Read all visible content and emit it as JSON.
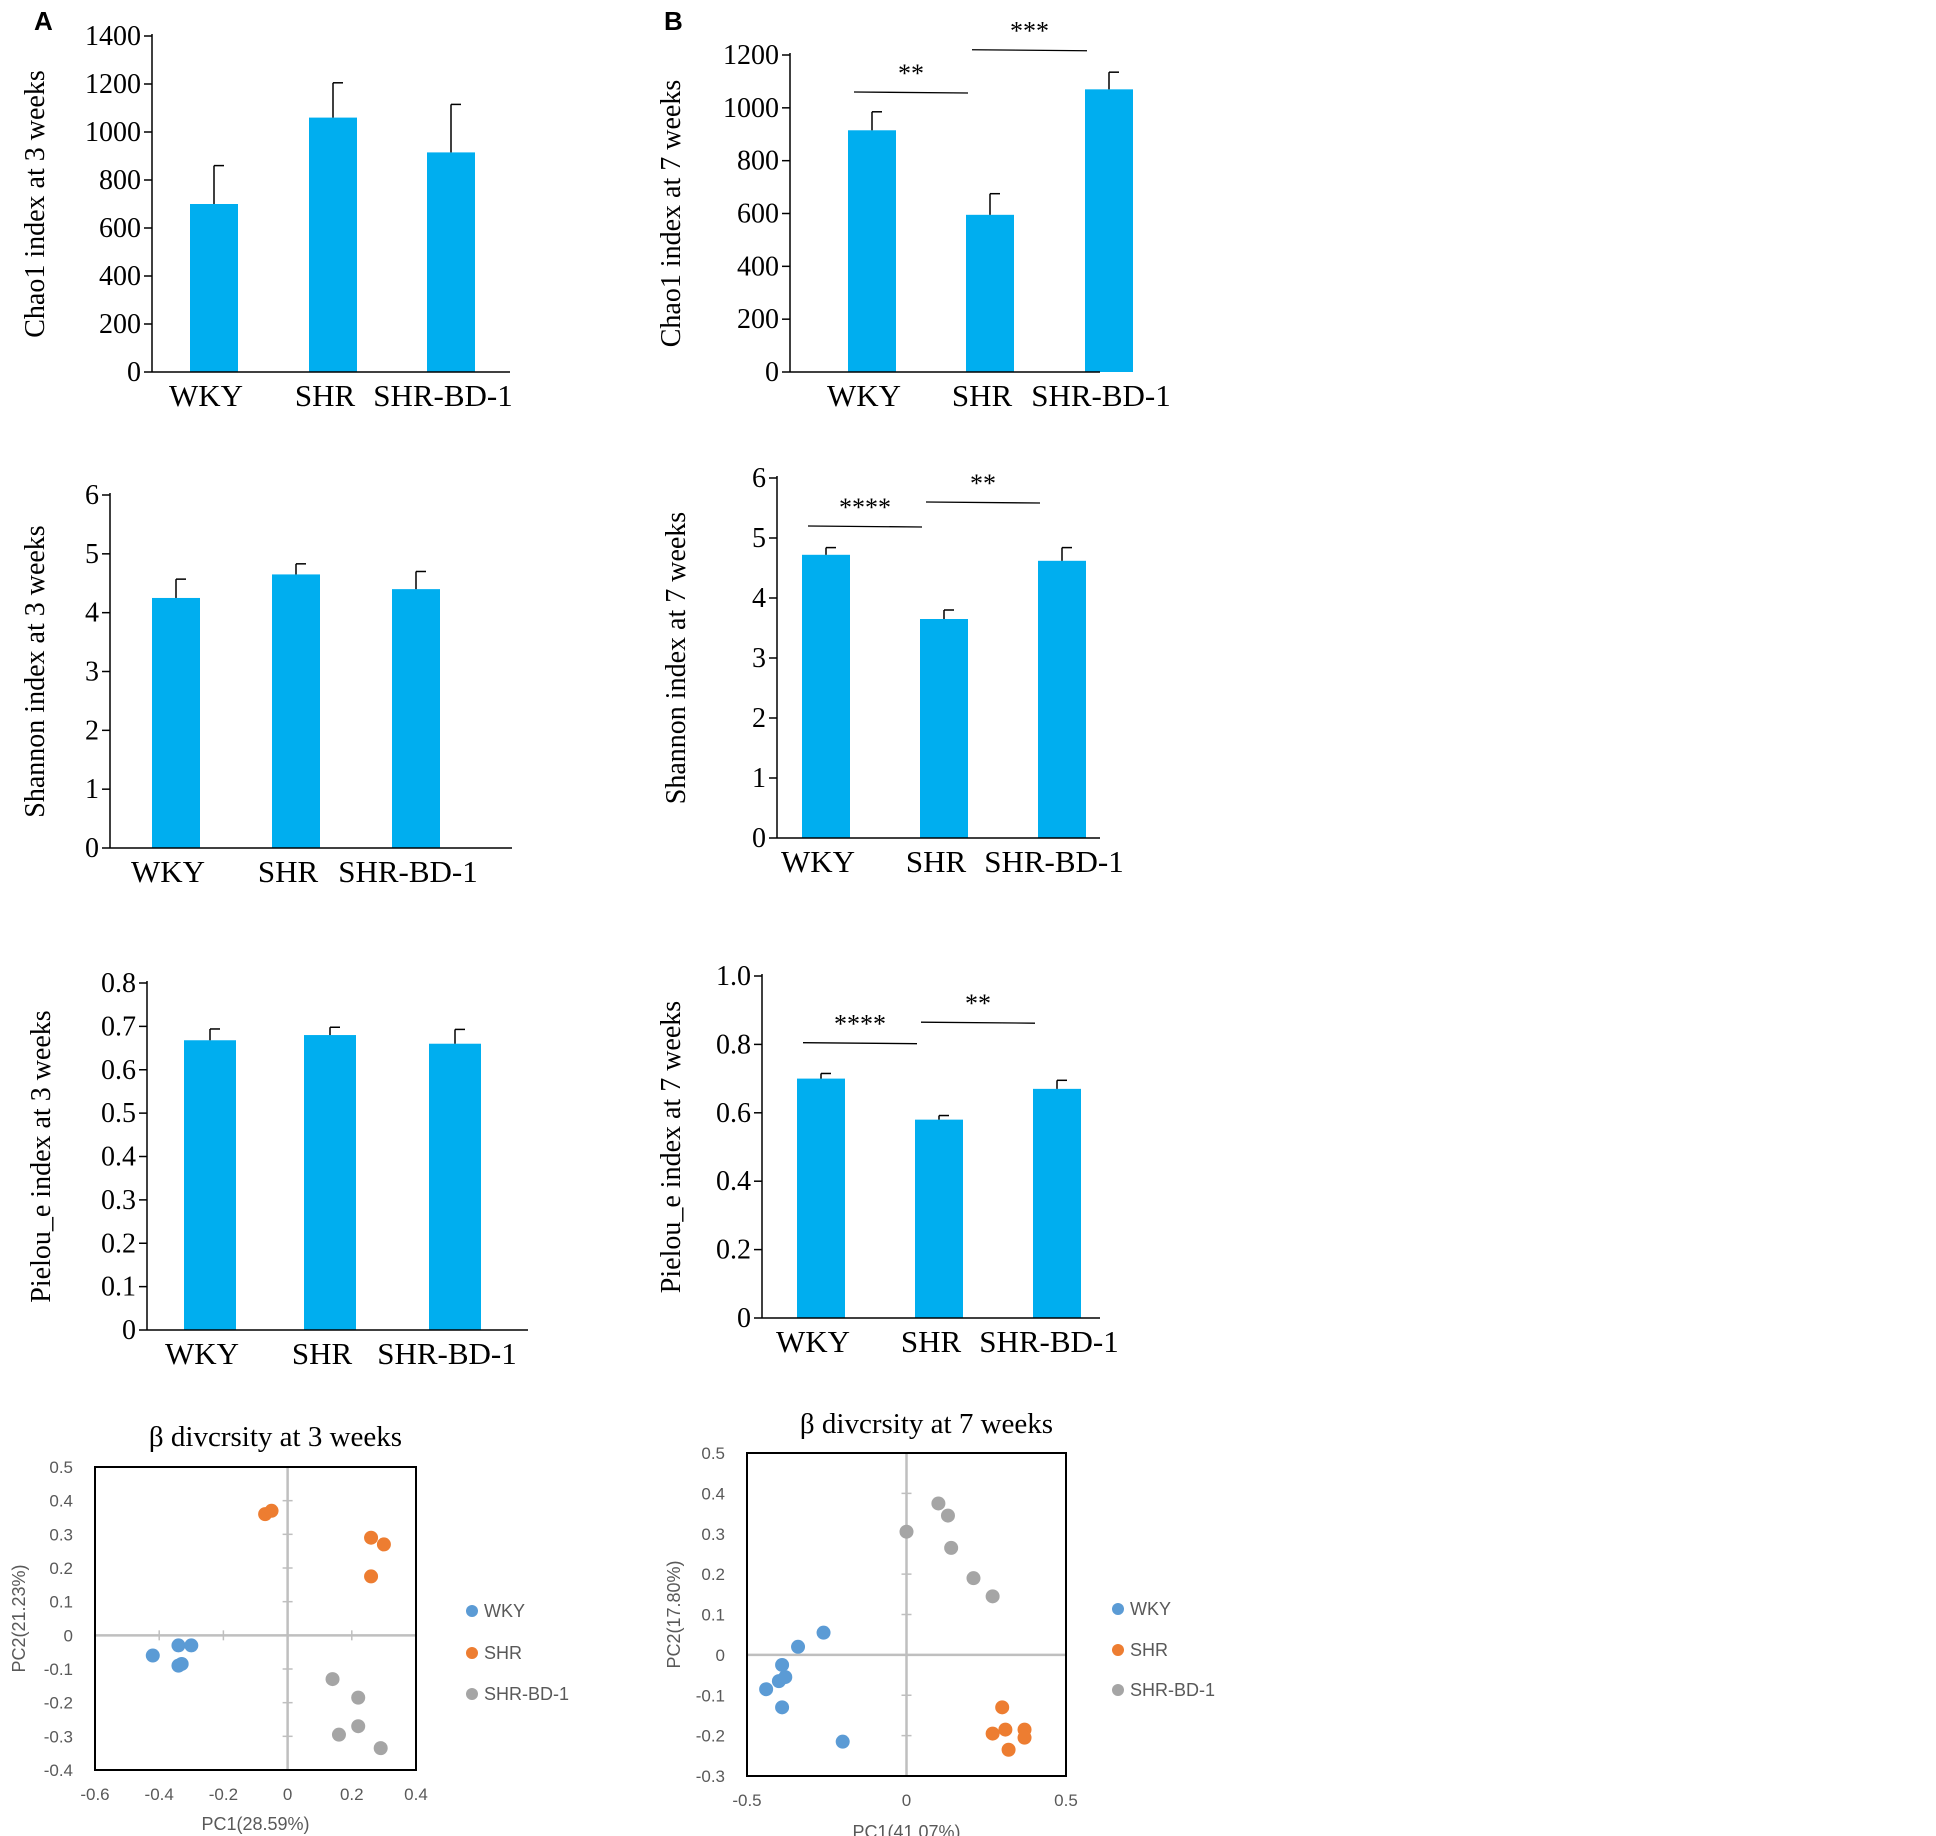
{
  "panel_labels": [
    "A",
    "B"
  ],
  "colors": {
    "bar": "#00AEEF",
    "axis": "#000000",
    "WKY": "#5B9BD5",
    "SHR": "#ED7D31",
    "SHR-BD-1": "#A5A5A5",
    "pca_axis": "#BFBFBF"
  },
  "chart_data": [
    {
      "id": "chao1-3w",
      "type": "bar",
      "panel": "A",
      "categories": [
        "WKY",
        "SHR",
        "SHR-BD-1"
      ],
      "values": [
        700,
        1060,
        915
      ],
      "errors": [
        160,
        145,
        200
      ],
      "ylabel": "Chao1 index at 3 weeks",
      "ylim": [
        0,
        1400
      ],
      "ticks": [
        0,
        200,
        400,
        600,
        800,
        1000,
        1200,
        1400
      ],
      "tick_labels": [
        "0",
        "200",
        "400",
        "600",
        "800",
        "1000",
        "1200",
        "1400"
      ],
      "significance": []
    },
    {
      "id": "chao1-7w",
      "type": "bar",
      "panel": "B",
      "categories": [
        "WKY",
        "SHR",
        "SHR-BD-1"
      ],
      "values": [
        915,
        595,
        1070
      ],
      "errors": [
        70,
        80,
        65
      ],
      "ylabel": "Chao1 index at 7 weeks",
      "ylim": [
        0,
        1200
      ],
      "ticks": [
        0,
        200,
        400,
        600,
        800,
        1000,
        1200
      ],
      "tick_labels": [
        "0",
        "200",
        "400",
        "600",
        "800",
        "1000",
        "1200"
      ],
      "significance": [
        {
          "from": 0,
          "to": 1,
          "label": "**",
          "y": 1060
        },
        {
          "from": 1,
          "to": 2,
          "label": "***",
          "y": 1220
        }
      ]
    },
    {
      "id": "shannon-3w",
      "type": "bar",
      "panel": "A",
      "categories": [
        "WKY",
        "SHR",
        "SHR-BD-1"
      ],
      "values": [
        4.25,
        4.65,
        4.4
      ],
      "errors": [
        0.32,
        0.18,
        0.3
      ],
      "ylabel": "Shannon index at 3 weeks",
      "ylim": [
        0,
        6
      ],
      "ticks": [
        0,
        1,
        2,
        3,
        4,
        5,
        6
      ],
      "tick_labels": [
        "0",
        "1",
        "2",
        "3",
        "4",
        "5",
        "6"
      ],
      "significance": []
    },
    {
      "id": "shannon-7w",
      "type": "bar",
      "panel": "B",
      "categories": [
        "WKY",
        "SHR",
        "SHR-BD-1"
      ],
      "values": [
        4.72,
        3.65,
        4.62
      ],
      "errors": [
        0.12,
        0.15,
        0.22
      ],
      "ylabel": "Shannon index at 7 weeks",
      "ylim": [
        0,
        6
      ],
      "ticks": [
        0,
        1,
        2,
        3,
        4,
        5,
        6
      ],
      "tick_labels": [
        "0",
        "1",
        "2",
        "3",
        "4",
        "5",
        "6"
      ],
      "significance": [
        {
          "from": 0,
          "to": 1,
          "label": "****",
          "y": 5.2
        },
        {
          "from": 1,
          "to": 2,
          "label": "**",
          "y": 5.6
        }
      ]
    },
    {
      "id": "pielou-3w",
      "type": "bar",
      "panel": "A",
      "categories": [
        "WKY",
        "SHR",
        "SHR-BD-1"
      ],
      "values": [
        0.668,
        0.68,
        0.66
      ],
      "errors": [
        0.026,
        0.018,
        0.033
      ],
      "ylabel": "Pielou_e index at 3 weeks",
      "ylim": [
        0,
        0.8
      ],
      "ticks": [
        0,
        0.1,
        0.2,
        0.3,
        0.4,
        0.5,
        0.6,
        0.7,
        0.8
      ],
      "tick_labels": [
        "0",
        "0.1",
        "0.2",
        "0.3",
        "0.4",
        "0.5",
        "0.6",
        "0.7",
        "0.8"
      ],
      "significance": []
    },
    {
      "id": "pielou-7w",
      "type": "bar",
      "panel": "B",
      "categories": [
        "WKY",
        "SHR",
        "SHR-BD-1"
      ],
      "values": [
        0.7,
        0.58,
        0.67
      ],
      "errors": [
        0.015,
        0.012,
        0.025
      ],
      "ylabel": "Pielou_e index at 7 weeks",
      "ylim": [
        0,
        1.0
      ],
      "ticks": [
        0,
        0.2,
        0.4,
        0.6,
        0.8,
        1.0
      ],
      "tick_labels": [
        "0",
        "0.2",
        "0.4",
        "0.6",
        "0.8",
        "1.0"
      ],
      "significance": [
        {
          "from": 0,
          "to": 1,
          "label": "****",
          "y": 0.805
        },
        {
          "from": 1,
          "to": 2,
          "label": "**",
          "y": 0.865
        }
      ]
    },
    {
      "id": "beta-3w",
      "type": "scatter",
      "title": "β divcrsity at 3 weeks",
      "xlabel": "PC1(28.59%)",
      "ylabel": "PC2(21.23%)",
      "xlim": [
        -0.6,
        0.4
      ],
      "ylim": [
        -0.4,
        0.5
      ],
      "xticks": [
        -0.6,
        -0.4,
        -0.2,
        0,
        0.2,
        0.4
      ],
      "xtick_labels": [
        "-0.6",
        "-0.4",
        "-0.2",
        "0",
        "0.2",
        "0.4"
      ],
      "yticks": [
        -0.4,
        -0.3,
        -0.2,
        -0.1,
        0,
        0.1,
        0.2,
        0.3,
        0.4,
        0.5
      ],
      "ytick_labels": [
        "-0.4",
        "-0.3",
        "-0.2",
        "-0.1",
        "0",
        "0.1",
        "0.2",
        "0.3",
        "0.4",
        "0.5"
      ],
      "legend": [
        "WKY",
        "SHR",
        "SHR-BD-1"
      ],
      "series": [
        {
          "name": "WKY",
          "points": [
            [
              -0.42,
              -0.06
            ],
            [
              -0.34,
              -0.03
            ],
            [
              -0.3,
              -0.03
            ],
            [
              -0.34,
              -0.09
            ],
            [
              -0.33,
              -0.085
            ]
          ]
        },
        {
          "name": "SHR",
          "points": [
            [
              -0.07,
              0.36
            ],
            [
              -0.05,
              0.37
            ],
            [
              0.26,
              0.29
            ],
            [
              0.3,
              0.27
            ],
            [
              0.26,
              0.175
            ]
          ]
        },
        {
          "name": "SHR-BD-1",
          "points": [
            [
              0.14,
              -0.13
            ],
            [
              0.22,
              -0.185
            ],
            [
              0.16,
              -0.295
            ],
            [
              0.22,
              -0.27
            ],
            [
              0.29,
              -0.335
            ]
          ]
        }
      ]
    },
    {
      "id": "beta-7w",
      "type": "scatter",
      "title": "β divcrsity at 7 weeks",
      "xlabel": "PC1(41.07%)",
      "ylabel": "PC2(17.80%)",
      "xlim": [
        -0.5,
        0.5
      ],
      "ylim": [
        -0.3,
        0.5
      ],
      "xticks": [
        -0.5,
        0,
        0.5
      ],
      "xtick_labels": [
        "-0.5",
        "0",
        "0.5"
      ],
      "yticks": [
        -0.3,
        -0.2,
        -0.1,
        0,
        0.1,
        0.2,
        0.3,
        0.4,
        0.5
      ],
      "ytick_labels": [
        "-0.3",
        "-0.2",
        "-0.1",
        "0",
        "0.1",
        "0.2",
        "0.3",
        "0.4",
        "0.5"
      ],
      "legend": [
        "WKY",
        "SHR",
        "SHR-BD-1"
      ],
      "series": [
        {
          "name": "WKY",
          "points": [
            [
              -0.26,
              0.055
            ],
            [
              -0.34,
              0.02
            ],
            [
              -0.39,
              -0.025
            ],
            [
              -0.4,
              -0.065
            ],
            [
              -0.38,
              -0.055
            ],
            [
              -0.44,
              -0.085
            ],
            [
              -0.39,
              -0.13
            ],
            [
              -0.2,
              -0.215
            ]
          ]
        },
        {
          "name": "SHR",
          "points": [
            [
              0.3,
              -0.13
            ],
            [
              0.27,
              -0.195
            ],
            [
              0.31,
              -0.185
            ],
            [
              0.37,
              -0.185
            ],
            [
              0.37,
              -0.205
            ],
            [
              0.32,
              -0.235
            ]
          ]
        },
        {
          "name": "SHR-BD-1",
          "points": [
            [
              0.1,
              0.375
            ],
            [
              0.13,
              0.345
            ],
            [
              0.0,
              0.305
            ],
            [
              0.14,
              0.265
            ],
            [
              0.21,
              0.19
            ],
            [
              0.27,
              0.145
            ]
          ]
        }
      ]
    }
  ]
}
